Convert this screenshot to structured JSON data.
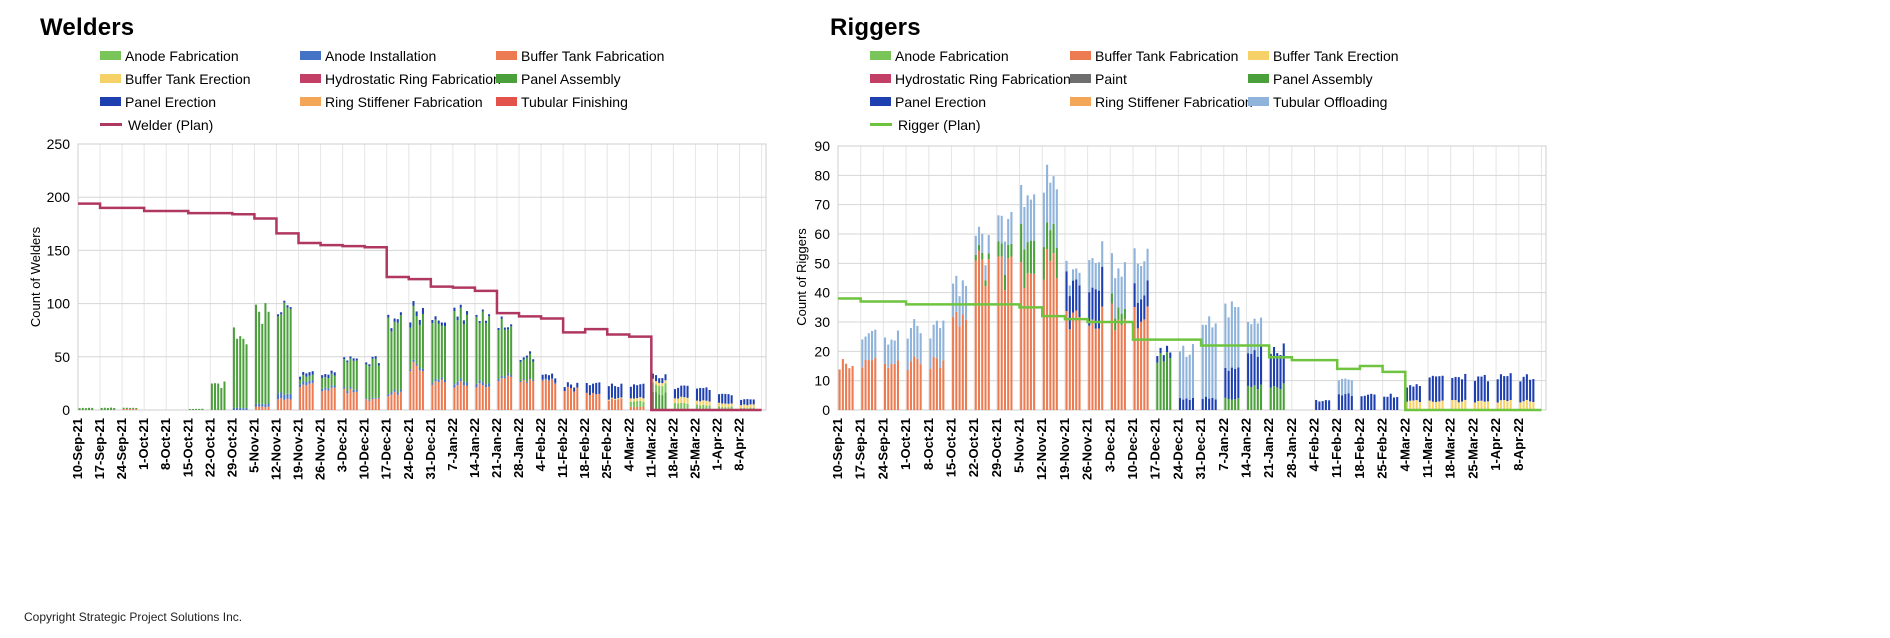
{
  "footer": "Copyright Strategic Project Solutions Inc.",
  "colors": {
    "anode_fab": "#79c55a",
    "anode_install": "#4472c4",
    "buffer_fab": "#ed7b52",
    "buffer_erect": "#f6d168",
    "hydro": "#c43f65",
    "paint": "#6e6e6e",
    "panel_asm": "#4ca03c",
    "panel_erect": "#1e3fb0",
    "ring_stiff": "#f3a657",
    "tubular_fin": "#e2514a",
    "tubular_off": "#8fb3da",
    "welder_plan": "#b0375f",
    "rigger_plan": "#6fc43f"
  },
  "dates": [
    "10-Sep-21",
    "17-Sep-21",
    "24-Sep-21",
    "1-Oct-21",
    "8-Oct-21",
    "15-Oct-21",
    "22-Oct-21",
    "29-Oct-21",
    "5-Nov-21",
    "12-Nov-21",
    "19-Nov-21",
    "26-Nov-21",
    "3-Dec-21",
    "10-Dec-21",
    "17-Dec-21",
    "24-Dec-21",
    "31-Dec-21",
    "7-Jan-22",
    "14-Jan-22",
    "21-Jan-22",
    "28-Jan-22",
    "4-Feb-22",
    "11-Feb-22",
    "18-Feb-22",
    "25-Feb-22",
    "4-Mar-22",
    "11-Mar-22",
    "18-Mar-22",
    "25-Mar-22",
    "1-Apr-22",
    "8-Apr-22"
  ],
  "chart_data": [
    {
      "id": "welders",
      "type": "bar",
      "stacked": true,
      "title": "Welders",
      "ylabel": "Count of Welders",
      "ylim": [
        0,
        250
      ],
      "yticks": [
        0,
        50,
        100,
        150,
        200,
        250
      ],
      "legend": [
        {
          "label": "Anode Fabrication",
          "color": "#79c55a",
          "kind": "bar"
        },
        {
          "label": "Anode Installation",
          "color": "#4472c4",
          "kind": "bar"
        },
        {
          "label": "Buffer Tank Fabrication",
          "color": "#ed7b52",
          "kind": "bar"
        },
        {
          "label": "Buffer Tank Erection",
          "color": "#f6d168",
          "kind": "bar"
        },
        {
          "label": "Hydrostatic Ring Fabrication",
          "color": "#c43f65",
          "kind": "bar"
        },
        {
          "label": "Panel Assembly",
          "color": "#4ca03c",
          "kind": "bar"
        },
        {
          "label": "Panel Erection",
          "color": "#1e3fb0",
          "kind": "bar"
        },
        {
          "label": "Ring Stiffener Fabrication",
          "color": "#f3a657",
          "kind": "bar"
        },
        {
          "label": "Tubular Finishing",
          "color": "#e2514a",
          "kind": "bar"
        },
        {
          "label": "Welder (Plan)",
          "color": "#b0375f",
          "kind": "line"
        }
      ],
      "weekly_totals": {
        "buffer_fab": [
          0,
          0,
          1,
          0,
          0,
          0,
          0,
          0,
          3,
          10,
          22,
          20,
          18,
          10,
          15,
          40,
          25,
          24,
          22,
          30,
          30,
          28,
          20,
          15,
          10,
          3,
          0,
          0,
          0,
          0,
          0
        ],
        "panel_asm": [
          2,
          2,
          1,
          0,
          0,
          1,
          24,
          70,
          85,
          80,
          5,
          10,
          25,
          35,
          65,
          45,
          50,
          60,
          58,
          48,
          20,
          0,
          0,
          0,
          0,
          0,
          15,
          0,
          0,
          0,
          0
        ],
        "anode_fab": [
          0,
          0,
          0,
          0,
          0,
          0,
          0,
          0,
          0,
          0,
          0,
          0,
          0,
          0,
          0,
          0,
          0,
          0,
          0,
          0,
          0,
          0,
          0,
          0,
          0,
          5,
          8,
          6,
          5,
          3,
          2
        ],
        "anode_install": [
          0,
          0,
          0,
          0,
          0,
          0,
          0,
          2,
          3,
          5,
          3,
          2,
          2,
          1,
          2,
          2,
          2,
          3,
          3,
          2,
          1,
          1,
          0,
          0,
          0,
          0,
          0,
          0,
          0,
          0,
          0
        ],
        "buffer_erect": [
          0,
          0,
          0,
          0,
          0,
          0,
          0,
          0,
          0,
          0,
          0,
          0,
          0,
          0,
          0,
          0,
          0,
          0,
          0,
          0,
          0,
          0,
          0,
          0,
          1,
          3,
          3,
          5,
          4,
          3,
          3
        ],
        "panel_erect": [
          0,
          0,
          0,
          0,
          0,
          0,
          0,
          0,
          0,
          2,
          3,
          3,
          2,
          2,
          3,
          5,
          3,
          3,
          2,
          2,
          2,
          4,
          4,
          10,
          12,
          12,
          5,
          10,
          12,
          8,
          5
        ]
      },
      "plan": [
        194,
        190,
        190,
        187,
        187,
        185,
        185,
        184,
        180,
        166,
        157,
        155,
        154,
        153,
        125,
        123,
        116,
        115,
        112,
        91,
        88,
        86,
        73,
        76,
        71,
        69,
        0,
        0,
        0,
        0,
        0
      ]
    },
    {
      "id": "riggers",
      "type": "bar",
      "stacked": true,
      "title": "Riggers",
      "ylabel": "Count of Riggers",
      "ylim": [
        0,
        90
      ],
      "yticks": [
        0,
        10,
        20,
        30,
        40,
        50,
        60,
        70,
        80,
        90
      ],
      "legend": [
        {
          "label": "Anode Fabrication",
          "color": "#79c55a",
          "kind": "bar"
        },
        {
          "label": "Buffer Tank Fabrication",
          "color": "#ed7b52",
          "kind": "bar"
        },
        {
          "label": "Buffer Tank Erection",
          "color": "#f6d168",
          "kind": "bar"
        },
        {
          "label": "Hydrostatic Ring Fabrication",
          "color": "#c43f65",
          "kind": "bar"
        },
        {
          "label": "Paint",
          "color": "#6e6e6e",
          "kind": "bar"
        },
        {
          "label": "Panel Assembly",
          "color": "#4ca03c",
          "kind": "bar"
        },
        {
          "label": "Panel Erection",
          "color": "#1e3fb0",
          "kind": "bar"
        },
        {
          "label": "Ring Stiffener Fabrication",
          "color": "#f3a657",
          "kind": "bar"
        },
        {
          "label": "Tubular Offloading",
          "color": "#8fb3da",
          "kind": "bar"
        },
        {
          "label": "Rigger (Plan)",
          "color": "#6fc43f",
          "kind": "line"
        }
      ],
      "weekly_totals": {
        "buffer_fab": [
          16,
          16,
          16,
          16,
          16,
          30,
          48,
          48,
          48,
          48,
          32,
          32,
          32,
          32,
          0,
          0,
          0,
          0,
          0,
          0,
          0,
          0,
          0,
          0,
          0,
          0,
          0,
          0,
          0,
          0,
          0
        ],
        "panel_asm": [
          0,
          0,
          0,
          0,
          0,
          0,
          2,
          5,
          12,
          10,
          0,
          0,
          4,
          0,
          18,
          0,
          0,
          4,
          8,
          8,
          0,
          0,
          0,
          0,
          0,
          0,
          0,
          0,
          0,
          0,
          0
        ],
        "panel_erect": [
          0,
          0,
          0,
          0,
          0,
          0,
          0,
          0,
          0,
          0,
          12,
          12,
          0,
          8,
          2,
          4,
          4,
          10,
          12,
          12,
          0,
          3,
          5,
          5,
          5,
          5,
          8,
          8,
          8,
          8,
          8
        ],
        "tubular_off": [
          0,
          9,
          9,
          12,
          12,
          12,
          6,
          10,
          14,
          18,
          4,
          10,
          14,
          12,
          0,
          16,
          25,
          20,
          10,
          0,
          0,
          0,
          5,
          0,
          0,
          0,
          0,
          0,
          0,
          0,
          0
        ],
        "buffer_erect": [
          0,
          0,
          0,
          0,
          0,
          0,
          0,
          0,
          0,
          0,
          0,
          0,
          0,
          0,
          0,
          0,
          0,
          0,
          0,
          0,
          0,
          0,
          0,
          0,
          0,
          3,
          3,
          3,
          3,
          3,
          3
        ]
      },
      "plan": [
        38,
        37,
        37,
        36,
        36,
        36,
        36,
        36,
        35,
        32,
        31,
        30,
        30,
        24,
        24,
        24,
        22,
        22,
        22,
        18,
        17,
        17,
        14,
        15,
        13,
        0,
        0,
        0,
        0,
        0,
        0
      ]
    }
  ]
}
